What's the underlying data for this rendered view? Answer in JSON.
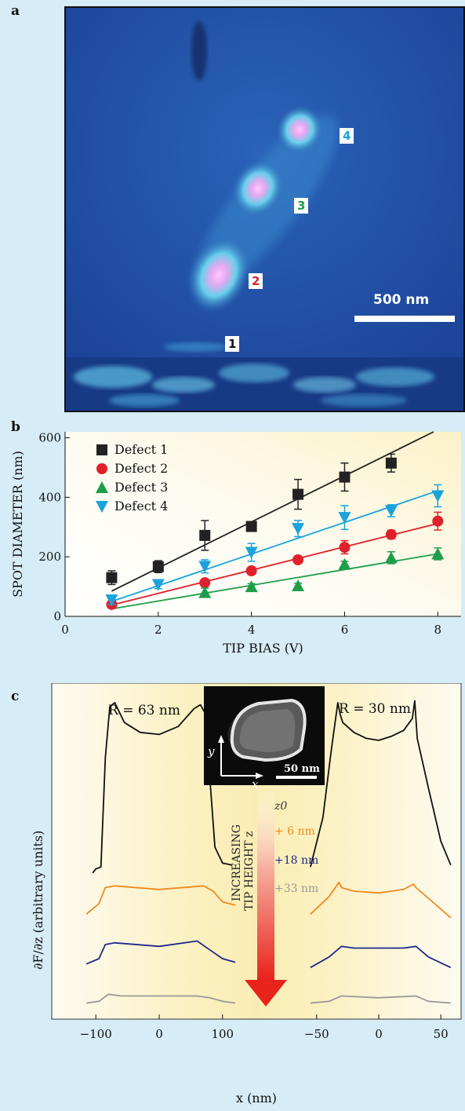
{
  "panel_a": {
    "letter": "a",
    "scale_bar_label": "500 nm",
    "defect_labels": [
      {
        "text": "1",
        "color": "#111111"
      },
      {
        "text": "2",
        "color": "#e0202a"
      },
      {
        "text": "3",
        "color": "#1f9e4a"
      },
      {
        "text": "4",
        "color": "#1aa3dd"
      }
    ]
  },
  "chart_data": [
    {
      "type": "scatter",
      "panel": "b",
      "xlabel": "TIP BIAS (V)",
      "ylabel": "SPOT DIAMETER (nm)",
      "xlim": [
        0,
        8.5
      ],
      "ylim": [
        0,
        620
      ],
      "xticks": [
        0,
        2,
        4,
        6,
        8
      ],
      "yticks": [
        0,
        200,
        400,
        600
      ],
      "legend_position": "top-left",
      "series": [
        {
          "name": "Defect 1",
          "marker": "square",
          "color": "#222222",
          "x": [
            1,
            2,
            3,
            4,
            5,
            6,
            7
          ],
          "y": [
            130,
            167,
            272,
            302,
            410,
            468,
            515
          ],
          "err": [
            23,
            20,
            50,
            15,
            50,
            47,
            30
          ],
          "fit": [
            [
              1,
              85
            ],
            [
              8,
              627
            ]
          ]
        },
        {
          "name": "Defect 2",
          "marker": "circle",
          "color": "#e0202a",
          "x": [
            1,
            3,
            4,
            5,
            6,
            7,
            8
          ],
          "y": [
            40,
            113,
            153,
            190,
            232,
            275,
            320
          ],
          "err": [
            0,
            8,
            8,
            12,
            22,
            14,
            30
          ],
          "fit": [
            [
              1,
              38
            ],
            [
              8,
              312
            ]
          ]
        },
        {
          "name": "Defect 3",
          "marker": "triangle-up",
          "color": "#1f9e4a",
          "x": [
            3,
            4,
            5,
            6,
            7,
            8
          ],
          "y": [
            80,
            100,
            103,
            175,
            197,
            210
          ],
          "err": [
            15,
            10,
            8,
            10,
            20,
            20
          ],
          "fit": [
            [
              1,
              25
            ],
            [
              8,
              210
            ]
          ]
        },
        {
          "name": "Defect 4",
          "marker": "triangle-down",
          "color": "#1aa3dd",
          "x": [
            1,
            2,
            3,
            4,
            5,
            6,
            7,
            8
          ],
          "y": [
            55,
            107,
            168,
            215,
            295,
            332,
            355,
            405
          ],
          "err": [
            15,
            14,
            22,
            30,
            27,
            40,
            20,
            37
          ],
          "fit": [
            [
              1,
              50
            ],
            [
              8,
              422
            ]
          ]
        }
      ]
    },
    {
      "type": "line",
      "panel": "c",
      "ylabel": "∂F/∂z (arbitrary units)",
      "xlabel": "x (nm)",
      "subplots": [
        {
          "annotation": "R = 63 nm",
          "xlim": [
            -125,
            125
          ],
          "xticks": [
            -100,
            0,
            100
          ],
          "series": [
            {
              "name": "z0",
              "color": "#111111",
              "x": [
                -105,
                -100,
                -92,
                -85,
                -78,
                -70,
                -55,
                -30,
                0,
                30,
                55,
                65,
                72,
                80,
                88,
                100,
                115
              ],
              "y": [
                0.12,
                0.14,
                0.15,
                0.7,
                0.96,
                0.98,
                0.88,
                0.83,
                0.82,
                0.86,
                0.95,
                0.97,
                0.93,
                0.6,
                0.25,
                0.17,
                0.16
              ]
            },
            {
              "name": "+ 6 nm",
              "color": "#f08a1e",
              "x": [
                -115,
                -95,
                -85,
                -70,
                0,
                70,
                85,
                100,
                120
              ],
              "y": [
                0.15,
                0.21,
                0.3,
                0.31,
                0.29,
                0.31,
                0.28,
                0.22,
                0.2
              ]
            },
            {
              "name": "+18 nm",
              "color": "#1f2a8c",
              "x": [
                -115,
                -95,
                -85,
                -70,
                0,
                60,
                80,
                100,
                120
              ],
              "y": [
                0.09,
                0.12,
                0.2,
                0.21,
                0.19,
                0.22,
                0.17,
                0.12,
                0.1
              ]
            },
            {
              "name": "+33 nm",
              "color": "#999999",
              "x": [
                -115,
                -95,
                -80,
                -60,
                0,
                60,
                80,
                100,
                120
              ],
              "y": [
                0.02,
                0.03,
                0.07,
                0.06,
                0.06,
                0.06,
                0.05,
                0.03,
                0.02
              ]
            }
          ]
        },
        {
          "annotation": "R = 30 nm",
          "xlim": [
            -60,
            60
          ],
          "xticks": [
            -50,
            0,
            50
          ],
          "series": [
            {
              "name": "z0",
              "color": "#111111",
              "x": [
                -55,
                -45,
                -38,
                -33,
                -31,
                -29,
                -20,
                -10,
                0,
                10,
                20,
                27,
                29,
                31,
                40,
                50,
                58
              ],
              "y": [
                0.15,
                0.4,
                0.75,
                0.98,
                0.92,
                0.88,
                0.83,
                0.8,
                0.79,
                0.81,
                0.84,
                0.9,
                0.99,
                0.8,
                0.55,
                0.28,
                0.16
              ]
            },
            {
              "name": "+ 6 nm",
              "color": "#f08a1e",
              "x": [
                -55,
                -40,
                -32,
                -30,
                -20,
                0,
                20,
                28,
                30,
                40,
                58
              ],
              "y": [
                0.15,
                0.25,
                0.33,
                0.3,
                0.28,
                0.27,
                0.29,
                0.32,
                0.3,
                0.24,
                0.13
              ]
            },
            {
              "name": "+18 nm",
              "color": "#1f2a8c",
              "x": [
                -55,
                -40,
                -30,
                -20,
                0,
                20,
                30,
                40,
                58
              ],
              "y": [
                0.07,
                0.13,
                0.19,
                0.18,
                0.18,
                0.18,
                0.19,
                0.13,
                0.07
              ]
            },
            {
              "name": "+33 nm",
              "color": "#999999",
              "x": [
                -55,
                -40,
                -30,
                0,
                30,
                40,
                58
              ],
              "y": [
                0.02,
                0.03,
                0.06,
                0.05,
                0.06,
                0.03,
                0.02
              ]
            }
          ]
        }
      ],
      "annotations": {
        "inset_scale_label": "50 nm",
        "inset_axis_x": "x",
        "inset_axis_y": "y",
        "arrow_label_line1": "INCREASING",
        "arrow_label_line2": "TIP HEIGHT z",
        "height_labels": [
          {
            "text": "z0",
            "color": "#333333"
          },
          {
            "text": "+ 6 nm",
            "color": "#f08a1e"
          },
          {
            "text": "+18 nm",
            "color": "#1f2a8c"
          },
          {
            "text": "+33 nm",
            "color": "#999999"
          }
        ]
      }
    }
  ]
}
